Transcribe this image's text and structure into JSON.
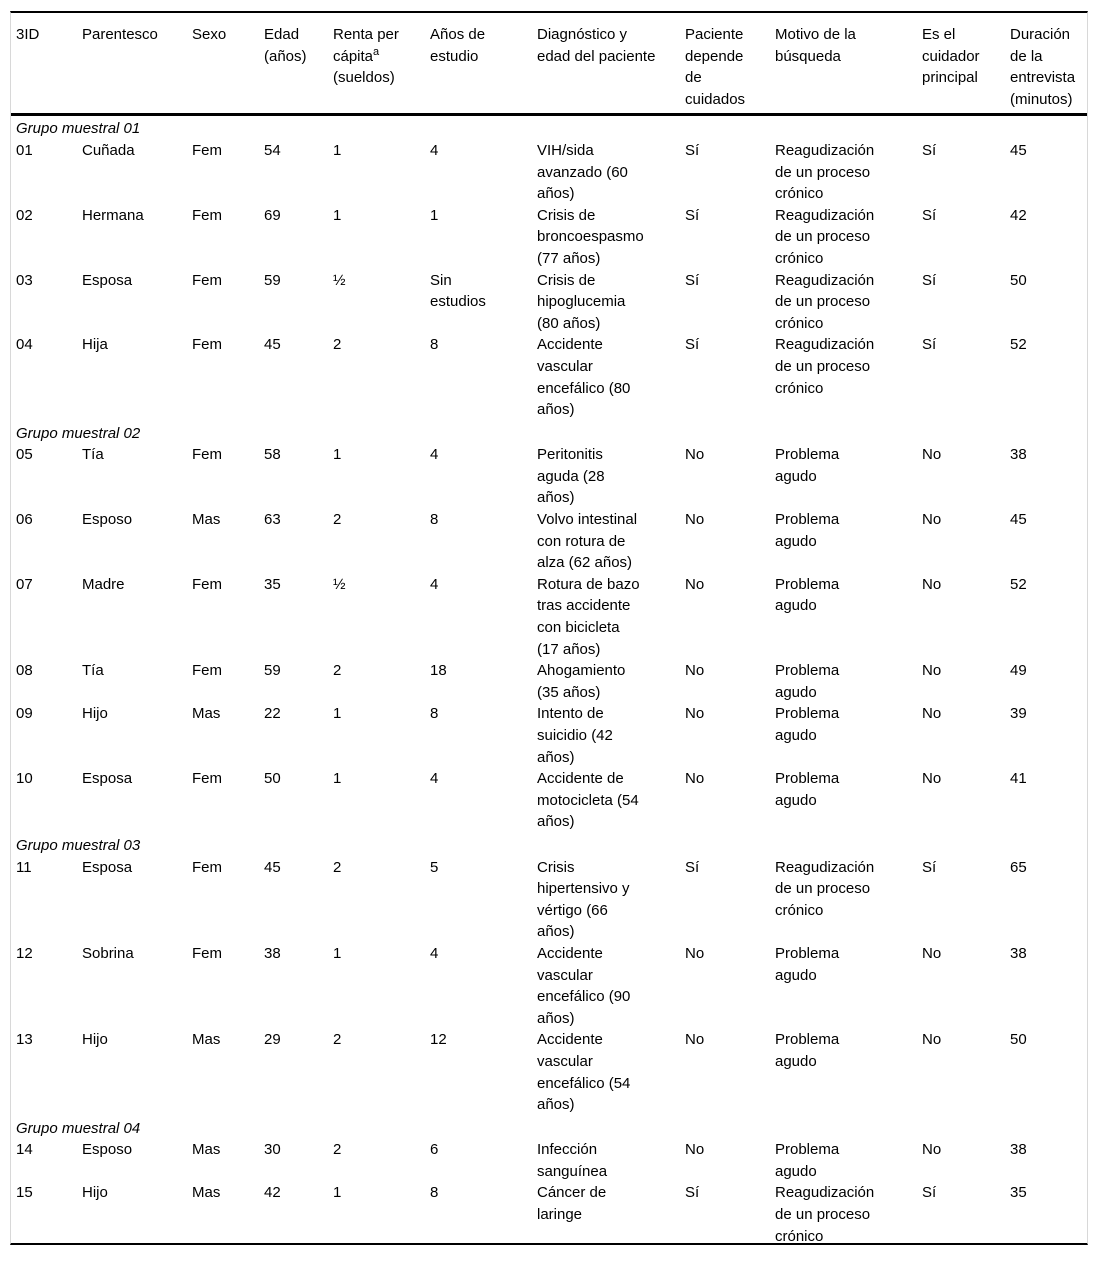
{
  "table": {
    "columns": [
      {
        "label": "3ID"
      },
      {
        "label": "Parentesco"
      },
      {
        "label": "Sexo"
      },
      {
        "label": "Edad\n(años)"
      },
      {
        "label": "Renta per\ncápita",
        "sup": "a",
        "label_after": "\n(sueldos)"
      },
      {
        "label": "Años de\nestudio"
      },
      {
        "label": "Diagnóstico y\nedad del paciente"
      },
      {
        "label": "Paciente\ndepende\nde\ncuidados"
      },
      {
        "label": "Motivo de la\nbúsqueda"
      },
      {
        "label": "Es el\ncuidador\nprincipal"
      },
      {
        "label": "Duración\nde la\nentrevista\n(minutos)"
      }
    ],
    "groups": [
      {
        "label": "Grupo muestral 01",
        "rows": [
          {
            "cells": [
              "01",
              "Cuñada",
              "Fem",
              "54",
              "1",
              "4",
              "VIH/sida\navanzado (60\naños)",
              "Sí",
              "Reagudización\nde un proceso\ncrónico",
              "Sí",
              "45"
            ]
          },
          {
            "cells": [
              "02",
              "Hermana",
              "Fem",
              "69",
              "1",
              "1",
              "Crisis de\nbroncoespasmo\n(77 años)",
              "Sí",
              "Reagudización\nde un proceso\ncrónico",
              "Sí",
              "42"
            ]
          },
          {
            "cells": [
              "03",
              "Esposa",
              "Fem",
              "59",
              "½",
              "Sin\nestudios",
              "Crisis de\nhipoglucemia\n(80 años)",
              "Sí",
              "Reagudización\nde un proceso\ncrónico",
              "Sí",
              "50"
            ]
          },
          {
            "cells": [
              "04",
              "Hija",
              "Fem",
              "45",
              "2",
              "8",
              "Accidente\nvascular\nencefálico (80\naños)",
              "Sí",
              "Reagudización\nde un proceso\ncrónico",
              "Sí",
              "52"
            ]
          }
        ]
      },
      {
        "label": "Grupo muestral 02",
        "rows": [
          {
            "cells": [
              "05",
              "Tía",
              "Fem",
              "58",
              "1",
              "4",
              "Peritonitis\naguda (28\naños)",
              "No",
              "Problema\nagudo",
              "No",
              "38"
            ]
          },
          {
            "cells": [
              "06",
              "Esposo",
              "Mas",
              "63",
              "2",
              "8",
              "Volvo intestinal\ncon rotura de\nalza (62 años)",
              "No",
              "Problema\nagudo",
              "No",
              "45"
            ]
          },
          {
            "cells": [
              "07",
              "Madre",
              "Fem",
              "35",
              "½",
              "4",
              "Rotura de bazo\ntras accidente\ncon bicicleta\n(17 años)",
              "No",
              "Problema\nagudo",
              "No",
              "52"
            ]
          },
          {
            "cells": [
              "08",
              "Tía",
              "Fem",
              "59",
              "2",
              "18",
              "Ahogamiento\n(35 años)",
              "No",
              "Problema\nagudo",
              "No",
              "49"
            ]
          },
          {
            "cells": [
              "09",
              "Hijo",
              "Mas",
              "22",
              "1",
              "8",
              "Intento de\nsuicidio (42\naños)",
              "No",
              "Problema\nagudo",
              "No",
              "39"
            ]
          },
          {
            "cells": [
              "10",
              "Esposa",
              "Fem",
              "50",
              "1",
              "4",
              "Accidente de\nmotocicleta (54\naños)",
              "No",
              "Problema\nagudo",
              "No",
              "41"
            ]
          }
        ]
      },
      {
        "label": "Grupo muestral 03",
        "rows": [
          {
            "cells": [
              "11",
              "Esposa",
              "Fem",
              "45",
              "2",
              "5",
              "Crisis\nhipertensivo y\nvértigo (66\naños)",
              "Sí",
              "Reagudización\nde un proceso\ncrónico",
              "Sí",
              "65"
            ]
          },
          {
            "cells": [
              "12",
              "Sobrina",
              "Fem",
              "38",
              "1",
              "4",
              "Accidente\nvascular\nencefálico (90\naños)",
              "No",
              "Problema\nagudo",
              "No",
              "38"
            ]
          },
          {
            "cells": [
              "13",
              "Hijo",
              "Mas",
              "29",
              "2",
              "12",
              "Accidente\nvascular\nencefálico (54\naños)",
              "No",
              "Problema\nagudo",
              "No",
              "50"
            ]
          }
        ]
      },
      {
        "label": "Grupo muestral 04",
        "rows": [
          {
            "cells": [
              "14",
              "Esposo",
              "Mas",
              "30",
              "2",
              "6",
              "Infección\nsanguínea",
              "No",
              "Problema\nagudo",
              "No",
              "38"
            ]
          },
          {
            "cells": [
              "15",
              "Hijo",
              "Mas",
              "42",
              "1",
              "8",
              "Cáncer de\nlaringe",
              "Sí",
              "Reagudización\nde un proceso\ncrónico",
              "Sí",
              "35"
            ]
          }
        ]
      }
    ]
  }
}
